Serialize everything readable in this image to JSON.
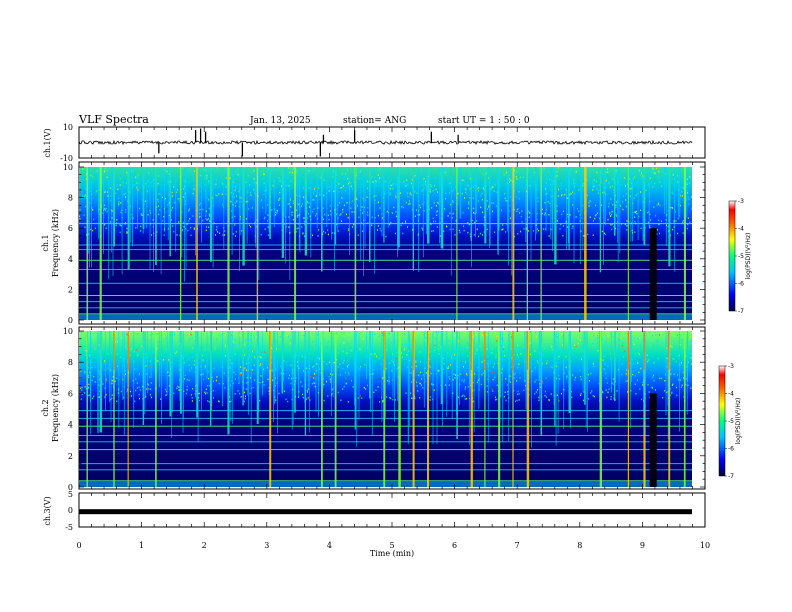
{
  "header": {
    "title": "VLF Spectra",
    "date": "Jan. 13, 2025",
    "station": "station= ANG",
    "start": "start  UT =   1 : 50 : 0"
  },
  "chart_data": [
    {
      "name": "ch1-waveform",
      "type": "line",
      "ylabel": "ch.1(V)",
      "ylim": [
        -10,
        10
      ],
      "yticks": [
        "10",
        "-10"
      ],
      "xlim": [
        0,
        10
      ],
      "baseline": 0,
      "spikes": [
        {
          "t": 1.28,
          "v": -7
        },
        {
          "t": 1.87,
          "v": 8
        },
        {
          "t": 1.95,
          "v": 9
        },
        {
          "t": 2.03,
          "v": 7
        },
        {
          "t": 2.62,
          "v": -9
        },
        {
          "t": 3.87,
          "v": -9
        },
        {
          "t": 3.92,
          "v": 5
        },
        {
          "t": 4.42,
          "v": 8
        },
        {
          "t": 5.65,
          "v": 7
        },
        {
          "t": 6.08,
          "v": 5
        }
      ]
    },
    {
      "name": "ch1-spectrogram",
      "type": "heatmap",
      "ylabel_top": "ch.1",
      "ylabel": "Frequency (kHz)",
      "ylim": [
        0,
        10
      ],
      "yticks": [
        "0",
        "2",
        "4",
        "6",
        "8",
        "10"
      ],
      "xlim": [
        0,
        9.83
      ],
      "colorbar": {
        "label": "log(PSD)(V²/Hz)",
        "range": [
          -7,
          -3
        ],
        "ticks": [
          "-3",
          "-4",
          "-5",
          "-6",
          "-7"
        ]
      },
      "bursts": [
        0.12,
        0.33,
        0.55,
        0.78,
        1.02,
        1.22,
        1.45,
        1.62,
        1.88,
        2.1,
        2.38,
        2.62,
        2.85,
        3.05,
        3.25,
        3.45,
        3.62,
        3.88,
        4.1,
        4.42,
        4.65,
        4.88,
        5.12,
        5.35,
        5.58,
        5.8,
        6.05,
        6.28,
        6.5,
        6.72,
        6.95,
        7.18,
        7.4,
        7.62,
        7.85,
        8.1,
        8.35,
        8.58,
        8.8,
        9.05,
        9.45,
        9.7
      ],
      "dark_band_t": 9.2,
      "lines_khz": [
        0.4,
        0.8,
        1.2,
        1.6,
        2.4,
        3.3,
        3.9,
        4.6,
        4.9,
        6.3
      ]
    },
    {
      "name": "ch2-spectrogram",
      "type": "heatmap",
      "ylabel_top": "ch.2",
      "ylabel": "Frequency (kHz)",
      "ylim": [
        0,
        10
      ],
      "yticks": [
        "0",
        "2",
        "4",
        "6",
        "8",
        "10"
      ],
      "xlim": [
        0,
        9.83
      ],
      "colorbar": {
        "label": "log(PSD)(V²/Hz)",
        "range": [
          -7,
          -3
        ],
        "ticks": [
          "-3",
          "-4",
          "-5",
          "-6",
          "-7"
        ]
      },
      "bursts": [
        0.12,
        0.33,
        0.55,
        0.78,
        1.02,
        1.22,
        1.45,
        1.62,
        1.88,
        2.1,
        2.38,
        2.62,
        2.85,
        3.05,
        3.25,
        3.45,
        3.62,
        3.88,
        4.1,
        4.42,
        4.65,
        4.88,
        5.12,
        5.35,
        5.58,
        5.8,
        6.05,
        6.28,
        6.5,
        6.72,
        6.95,
        7.18,
        7.4,
        7.62,
        7.85,
        8.1,
        8.35,
        8.58,
        8.8,
        9.05,
        9.45,
        9.7
      ],
      "dark_band_t": 9.2,
      "lines_khz": [
        0.4,
        1.1,
        1.5,
        2.4,
        2.9,
        3.3,
        3.9,
        4.4,
        4.9
      ]
    },
    {
      "name": "ch3-waveform",
      "type": "line",
      "ylabel": "ch.3(V)",
      "ylim": [
        -5,
        5
      ],
      "yticks": [
        "5",
        "0",
        "-5"
      ],
      "xlim": [
        0,
        10
      ],
      "baseline": -0.5
    }
  ],
  "xaxis": {
    "label": "Time  (min)",
    "ticks": [
      "0",
      "1",
      "2",
      "3",
      "4",
      "5",
      "6",
      "7",
      "8",
      "9",
      "10"
    ]
  },
  "colors": {
    "frame": "#000000",
    "colormap": [
      "#000040",
      "#0000ff",
      "#00c0ff",
      "#00ff80",
      "#ffff00",
      "#ff8000",
      "#ff0000",
      "#ffffff"
    ]
  }
}
